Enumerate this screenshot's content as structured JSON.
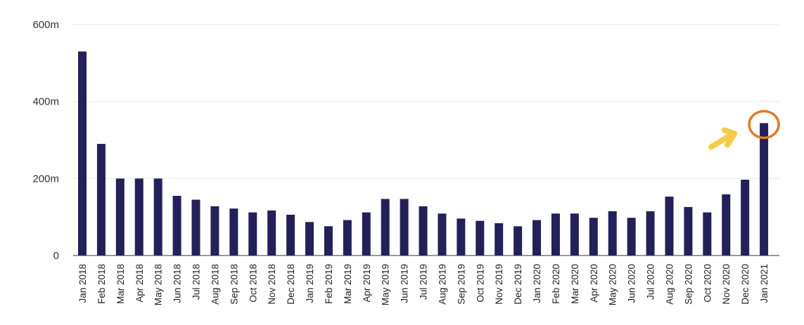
{
  "chart_data": {
    "type": "bar",
    "title": "",
    "xlabel": "",
    "ylabel": "",
    "ylim": [
      0,
      600
    ],
    "y_ticks": [
      {
        "value": 0,
        "label": "0"
      },
      {
        "value": 200,
        "label": "200m"
      },
      {
        "value": 400,
        "label": "400m"
      },
      {
        "value": 600,
        "label": "600m"
      }
    ],
    "grid": true,
    "bar_color": "#24205a",
    "categories": [
      "Jan 2018",
      "Feb 2018",
      "Mar 2018",
      "Apr 2018",
      "May 2018",
      "Jun 2018",
      "Jul 2018",
      "Aug 2018",
      "Sep 2018",
      "Oct 2018",
      "Nov 2018",
      "Dec 2018",
      "Jan 2019",
      "Feb 2019",
      "Mar 2019",
      "Apr 2019",
      "May 2019",
      "Jun 2019",
      "Jul 2019",
      "Aug 2019",
      "Sep 2019",
      "Oct 2019",
      "Nov 2019",
      "Dec 2019",
      "Jan 2020",
      "Feb 2020",
      "Mar 2020",
      "Apr 2020",
      "May 2020",
      "Jun 2020",
      "Jul 2020",
      "Aug 2020",
      "Sep 2020",
      "Oct 2020",
      "Nov 2020",
      "Dec 2020",
      "Jan 2021"
    ],
    "values": [
      530,
      290,
      200,
      200,
      200,
      155,
      145,
      128,
      122,
      112,
      117,
      106,
      87,
      76,
      92,
      112,
      147,
      147,
      128,
      109,
      96,
      90,
      84,
      76,
      92,
      109,
      109,
      98,
      115,
      98,
      115,
      153,
      126,
      112,
      159,
      197,
      344
    ],
    "annotations": [
      {
        "type": "circle",
        "target": "Jan 2021",
        "color": "#e07b2a"
      },
      {
        "type": "arrow",
        "target": "Jan 2021",
        "color": "#f5cc4a"
      }
    ]
  }
}
